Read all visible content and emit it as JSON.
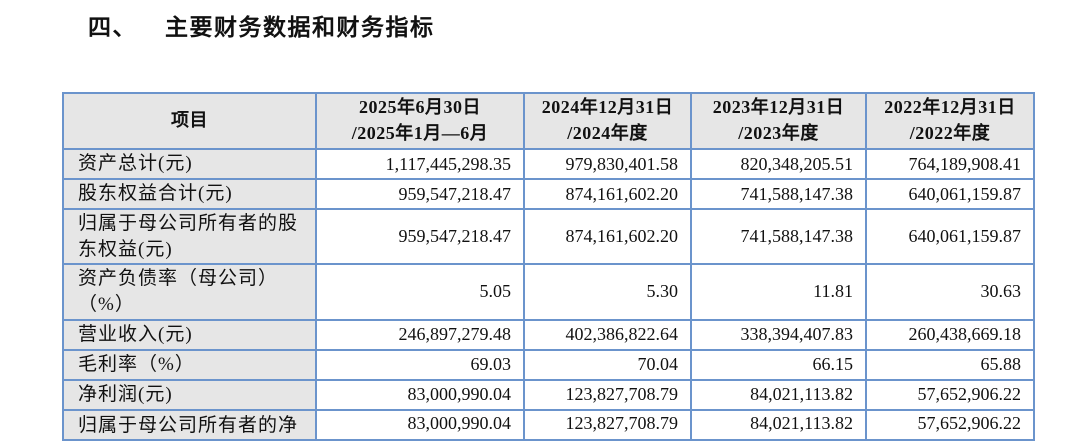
{
  "title": {
    "number": "四、",
    "text": "主要财务数据和财务指标"
  },
  "table": {
    "header": {
      "item": "项目",
      "periods": [
        {
          "line1": "2025年6月30日",
          "line2": "/2025年1月—6月"
        },
        {
          "line1": "2024年12月31日",
          "line2": "/2024年度"
        },
        {
          "line1": "2023年12月31日",
          "line2": "/2023年度"
        },
        {
          "line1": "2022年12月31日",
          "line2": "/2022年度"
        }
      ]
    },
    "rows": [
      {
        "label": "资产总计(元)",
        "values": [
          "1,117,445,298.35",
          "979,830,401.58",
          "820,348,205.51",
          "764,189,908.41"
        ]
      },
      {
        "label": "股东权益合计(元)",
        "values": [
          "959,547,218.47",
          "874,161,602.20",
          "741,588,147.38",
          "640,061,159.87"
        ]
      },
      {
        "label": "归属于母公司所有者的股东权益(元)",
        "tall": true,
        "values": [
          "959,547,218.47",
          "874,161,602.20",
          "741,588,147.38",
          "640,061,159.87"
        ]
      },
      {
        "label": "资产负债率（母公司）（%）",
        "values": [
          "5.05",
          "5.30",
          "11.81",
          "30.63"
        ]
      },
      {
        "label": "营业收入(元)",
        "values": [
          "246,897,279.48",
          "402,386,822.64",
          "338,394,407.83",
          "260,438,669.18"
        ]
      },
      {
        "label": "毛利率（%）",
        "values": [
          "69.03",
          "70.04",
          "66.15",
          "65.88"
        ]
      },
      {
        "label": "净利润(元)",
        "values": [
          "83,000,990.04",
          "123,827,708.79",
          "84,021,113.82",
          "57,652,906.22"
        ]
      },
      {
        "label": "归属于母公司所有者的净",
        "clipped": true,
        "values": [
          "83,000,990.04",
          "123,827,708.79",
          "84,021,113.82",
          "57,652,906.22"
        ]
      }
    ]
  },
  "colors": {
    "table_border": "#6b94cc",
    "shaded_cell_bg": "#e6e6e6",
    "text": "#111111",
    "page_bg": "#ffffff"
  }
}
